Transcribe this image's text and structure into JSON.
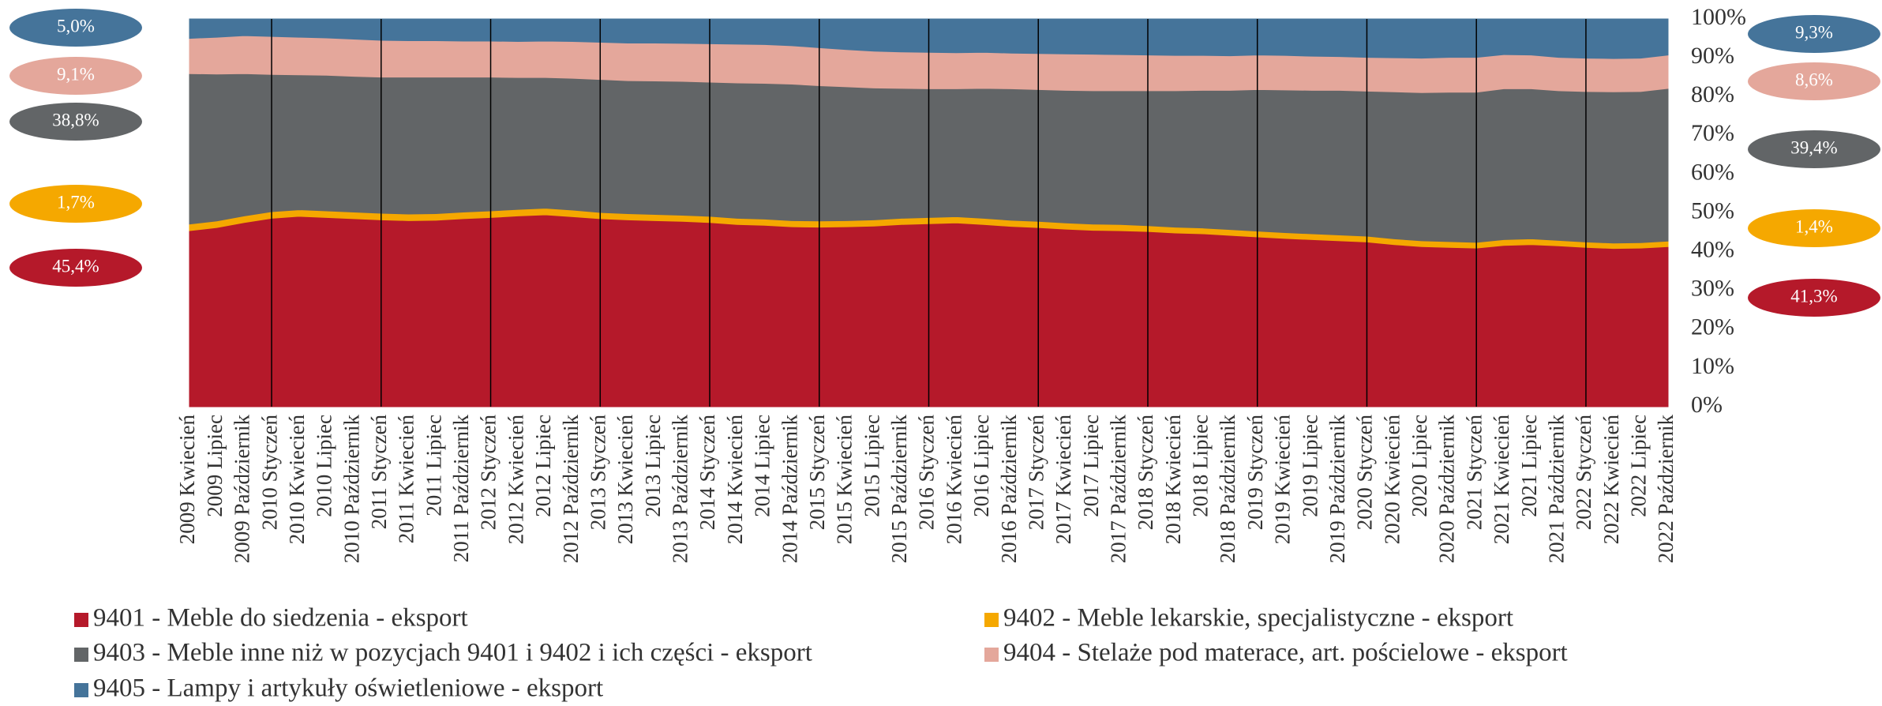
{
  "chart_data": {
    "type": "stacked_area",
    "categories": [
      "2009 Kwiecień",
      "2009 Lipiec",
      "2009 Październik",
      "2010 Styczeń",
      "2010 Kwiecień",
      "2010 Lipiec",
      "2010 Październik",
      "2011 Styczeń",
      "2011 Kwiecień",
      "2011 Lipiec",
      "2011 Październik",
      "2012 Styczeń",
      "2012 Kwiecień",
      "2012 Lipiec",
      "2012 Październik",
      "2013 Styczeń",
      "2013 Kwiecień",
      "2013 Lipiec",
      "2013 Październik",
      "2014 Styczeń",
      "2014 Kwiecień",
      "2014 Lipiec",
      "2014 Październik",
      "2015 Styczeń",
      "2015 Kwiecień",
      "2015 Lipiec",
      "2015 Październik",
      "2016 Styczeń",
      "2016 Kwiecień",
      "2016 Lipiec",
      "2016 Październik",
      "2017 Styczeń",
      "2017 Kwiecień",
      "2017 Lipiec",
      "2017 Październik",
      "2018 Styczeń",
      "2018 Kwiecień",
      "2018 Lipiec",
      "2018 Październik",
      "2019 Styczeń",
      "2019 Kwiecień",
      "2019 Lipiec",
      "2019 Październik",
      "2020 Styczeń",
      "2020 Kwiecień",
      "2020 Lipiec",
      "2020 Październik",
      "2021 Styczeń",
      "2021 Kwiecień",
      "2021 Lipiec",
      "2021 Październik",
      "2022 Styczeń",
      "2022 Kwiecień",
      "2022 Lipiec",
      "2022 Październik"
    ],
    "ylim": [
      0,
      100
    ],
    "yticks": [
      {
        "value": 0,
        "label": "0%"
      },
      {
        "value": 10,
        "label": "10%"
      },
      {
        "value": 20,
        "label": "20%"
      },
      {
        "value": 30,
        "label": "30%"
      },
      {
        "value": 40,
        "label": "40%"
      },
      {
        "value": 50,
        "label": "50%"
      },
      {
        "value": 60,
        "label": "60%"
      },
      {
        "value": 70,
        "label": "70%"
      },
      {
        "value": 80,
        "label": "80%"
      },
      {
        "value": 90,
        "label": "90%"
      },
      {
        "value": 100,
        "label": "100%"
      }
    ],
    "series": [
      {
        "name": "9401 - Meble do siedzenia - eksport",
        "color": "#b5192a",
        "values": [
          45.4,
          46.2,
          47.5,
          48.6,
          49.1,
          48.8,
          48.5,
          48.2,
          48.0,
          48.1,
          48.5,
          48.8,
          49.2,
          49.5,
          49.0,
          48.5,
          48.2,
          48.0,
          47.8,
          47.5,
          47.0,
          46.8,
          46.4,
          46.3,
          46.4,
          46.6,
          47.0,
          47.2,
          47.4,
          47.0,
          46.5,
          46.2,
          45.8,
          45.5,
          45.4,
          45.2,
          44.8,
          44.6,
          44.2,
          43.8,
          43.4,
          43.1,
          42.8,
          42.5,
          41.8,
          41.3,
          41.1,
          40.9,
          41.6,
          41.8,
          41.5,
          41.1,
          40.8,
          40.9,
          41.3
        ],
        "value_labels": [
          "45,4%",
          null,
          null,
          null,
          null,
          null,
          null,
          null,
          null,
          null,
          null,
          null,
          null,
          null,
          null,
          null,
          null,
          null,
          null,
          null,
          null,
          null,
          null,
          null,
          null,
          null,
          null,
          null,
          null,
          null,
          null,
          null,
          null,
          null,
          null,
          null,
          null,
          null,
          null,
          null,
          null,
          null,
          null,
          null,
          null,
          null,
          null,
          null,
          null,
          null,
          null,
          null,
          null,
          null,
          "41,3%"
        ]
      },
      {
        "name": "9402 - Meble lekarskie, specjalistyczne  - eksport",
        "color": "#f5a800",
        "values": [
          1.7,
          1.7,
          1.7,
          1.7,
          1.7,
          1.7,
          1.7,
          1.7,
          1.7,
          1.7,
          1.7,
          1.7,
          1.7,
          1.7,
          1.7,
          1.6,
          1.6,
          1.6,
          1.6,
          1.6,
          1.6,
          1.6,
          1.6,
          1.6,
          1.6,
          1.6,
          1.6,
          1.6,
          1.6,
          1.6,
          1.6,
          1.6,
          1.6,
          1.6,
          1.6,
          1.5,
          1.5,
          1.5,
          1.5,
          1.5,
          1.5,
          1.5,
          1.5,
          1.5,
          1.5,
          1.5,
          1.5,
          1.5,
          1.5,
          1.5,
          1.4,
          1.4,
          1.4,
          1.4,
          1.4
        ],
        "value_labels": [
          "1,7%",
          null,
          null,
          null,
          null,
          null,
          null,
          null,
          null,
          null,
          null,
          null,
          null,
          null,
          null,
          null,
          null,
          null,
          null,
          null,
          null,
          null,
          null,
          null,
          null,
          null,
          null,
          null,
          null,
          null,
          null,
          null,
          null,
          null,
          null,
          null,
          null,
          null,
          null,
          null,
          null,
          null,
          null,
          null,
          null,
          null,
          null,
          null,
          null,
          null,
          null,
          null,
          null,
          null,
          "1,4%"
        ]
      },
      {
        "name": "9403 - Meble inne niż w pozycjach 9401 i 9402 i ich części  - eksport",
        "color": "#626567",
        "values": [
          38.8,
          37.9,
          36.7,
          35.4,
          34.8,
          35.0,
          35.0,
          35.1,
          35.3,
          35.2,
          34.8,
          34.5,
          34.0,
          33.7,
          34.0,
          34.3,
          34.3,
          34.4,
          34.5,
          34.6,
          34.9,
          35.0,
          35.2,
          34.9,
          34.5,
          34.0,
          33.5,
          33.2,
          33.0,
          33.5,
          33.9,
          34.0,
          34.2,
          34.4,
          34.5,
          34.8,
          35.2,
          35.5,
          35.9,
          36.5,
          36.8,
          37.0,
          37.3,
          37.4,
          37.9,
          38.2,
          38.5,
          38.7,
          38.9,
          38.7,
          38.6,
          38.8,
          39.0,
          39.0,
          39.4
        ],
        "value_labels": [
          "38,8%",
          null,
          null,
          null,
          null,
          null,
          null,
          null,
          null,
          null,
          null,
          null,
          null,
          null,
          null,
          null,
          null,
          null,
          null,
          null,
          null,
          null,
          null,
          null,
          null,
          null,
          null,
          null,
          null,
          null,
          null,
          null,
          null,
          null,
          null,
          null,
          null,
          null,
          null,
          null,
          null,
          null,
          null,
          null,
          null,
          null,
          null,
          null,
          null,
          null,
          null,
          null,
          null,
          null,
          "39,4%"
        ]
      },
      {
        "name": "9404 - Stelaże pod materace, art. pościelowe - eksport",
        "color": "#e4a79b",
        "values": [
          9.1,
          9.5,
          9.8,
          9.8,
          9.7,
          9.6,
          9.6,
          9.5,
          9.4,
          9.4,
          9.3,
          9.3,
          9.3,
          9.4,
          9.5,
          9.6,
          9.7,
          9.8,
          9.8,
          9.9,
          10.0,
          10.0,
          9.9,
          9.8,
          9.6,
          9.5,
          9.4,
          9.4,
          9.3,
          9.3,
          9.2,
          9.3,
          9.4,
          9.4,
          9.3,
          9.2,
          9.1,
          9.0,
          8.9,
          8.9,
          8.9,
          8.8,
          8.7,
          8.7,
          8.8,
          8.9,
          9.0,
          9.0,
          8.8,
          8.7,
          8.6,
          8.6,
          8.6,
          8.6,
          8.6
        ],
        "value_labels": [
          "9,1%",
          null,
          null,
          null,
          null,
          null,
          null,
          null,
          null,
          null,
          null,
          null,
          null,
          null,
          null,
          null,
          null,
          null,
          null,
          null,
          null,
          null,
          null,
          null,
          null,
          null,
          null,
          null,
          null,
          null,
          null,
          null,
          null,
          null,
          null,
          null,
          null,
          null,
          null,
          null,
          null,
          null,
          null,
          null,
          null,
          null,
          null,
          null,
          null,
          null,
          null,
          null,
          null,
          null,
          "8,6%"
        ]
      },
      {
        "name": "9405 - Lampy i  artykuły oświetleniowe  - eksport",
        "color": "#45749a",
        "values": [
          5.0,
          4.7,
          4.3,
          4.5,
          4.7,
          4.9,
          5.2,
          5.5,
          5.6,
          5.6,
          5.7,
          5.7,
          5.8,
          5.7,
          5.8,
          6.0,
          6.2,
          6.2,
          6.3,
          6.4,
          6.5,
          6.6,
          6.9,
          7.4,
          7.9,
          8.3,
          8.5,
          8.6,
          8.7,
          8.6,
          8.8,
          8.9,
          9.0,
          9.1,
          9.2,
          9.3,
          9.4,
          9.4,
          9.5,
          9.3,
          9.4,
          9.6,
          9.7,
          9.9,
          10.0,
          10.1,
          9.9,
          9.9,
          9.2,
          9.3,
          9.9,
          10.1,
          10.2,
          10.1,
          9.3
        ],
        "value_labels": [
          "5,0%",
          null,
          null,
          null,
          null,
          null,
          null,
          null,
          null,
          null,
          null,
          null,
          null,
          null,
          null,
          null,
          null,
          null,
          null,
          null,
          null,
          null,
          null,
          null,
          null,
          null,
          null,
          null,
          null,
          null,
          null,
          null,
          null,
          null,
          null,
          null,
          null,
          null,
          null,
          null,
          null,
          null,
          null,
          null,
          null,
          null,
          null,
          null,
          null,
          null,
          null,
          null,
          null,
          null,
          "9,3%"
        ]
      }
    ]
  }
}
